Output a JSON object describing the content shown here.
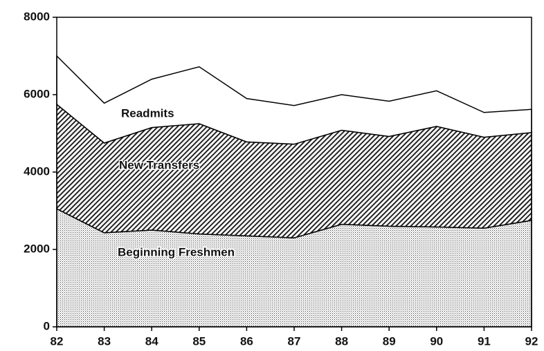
{
  "chart_data": {
    "type": "stacked-area",
    "categories": [
      "82",
      "83",
      "84",
      "85",
      "86",
      "87",
      "88",
      "89",
      "90",
      "91",
      "92"
    ],
    "series": [
      {
        "name": "Beginning Freshmen",
        "pattern": "dots",
        "values": [
          3050,
          2430,
          2500,
          2400,
          2350,
          2300,
          2650,
          2600,
          2580,
          2550,
          2750
        ]
      },
      {
        "name": "New Transfers",
        "pattern": "hatch",
        "values": [
          2700,
          2320,
          2650,
          2850,
          2430,
          2420,
          2430,
          2320,
          2600,
          2350,
          2270
        ]
      },
      {
        "name": "Readmits",
        "pattern": "none",
        "values": [
          1250,
          1030,
          1250,
          1470,
          1120,
          1000,
          920,
          910,
          920,
          640,
          600
        ]
      }
    ],
    "ylim": [
      0,
      8000
    ],
    "yticks": [
      0,
      2000,
      4000,
      6000,
      8000
    ]
  }
}
